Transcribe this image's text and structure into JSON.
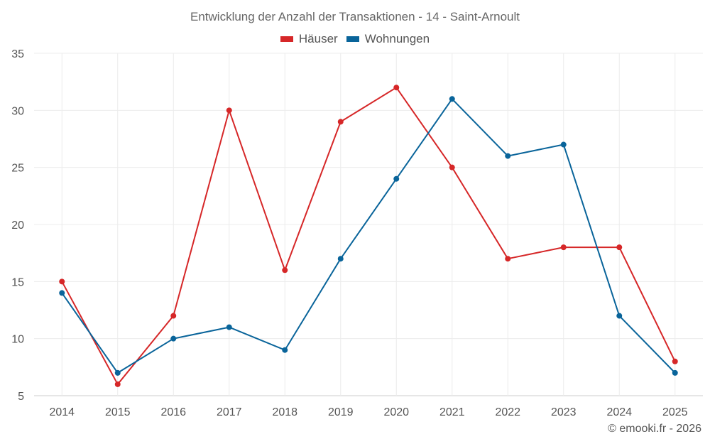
{
  "chart_data": {
    "type": "line",
    "title": "Entwicklung der Anzahl der Transaktionen - 14 - Saint-Arnoult",
    "categories": [
      "2014",
      "2015",
      "2016",
      "2017",
      "2018",
      "2019",
      "2020",
      "2021",
      "2022",
      "2023",
      "2024",
      "2025"
    ],
    "series": [
      {
        "name": "Häuser",
        "color": "#d62728",
        "values": [
          15,
          6,
          12,
          30,
          16,
          29,
          32,
          25,
          17,
          18,
          18,
          8
        ]
      },
      {
        "name": "Wohnungen",
        "color": "#09649a",
        "values": [
          14,
          7,
          10,
          11,
          9,
          17,
          24,
          31,
          26,
          27,
          12,
          7
        ]
      }
    ],
    "ylim": [
      5,
      35
    ],
    "yticks": [
      5,
      10,
      15,
      20,
      25,
      30,
      35
    ],
    "xlabel": "",
    "ylabel": "",
    "grid": true,
    "legend": "top-center"
  },
  "footer": {
    "credit": "© emooki.fr - 2026"
  }
}
